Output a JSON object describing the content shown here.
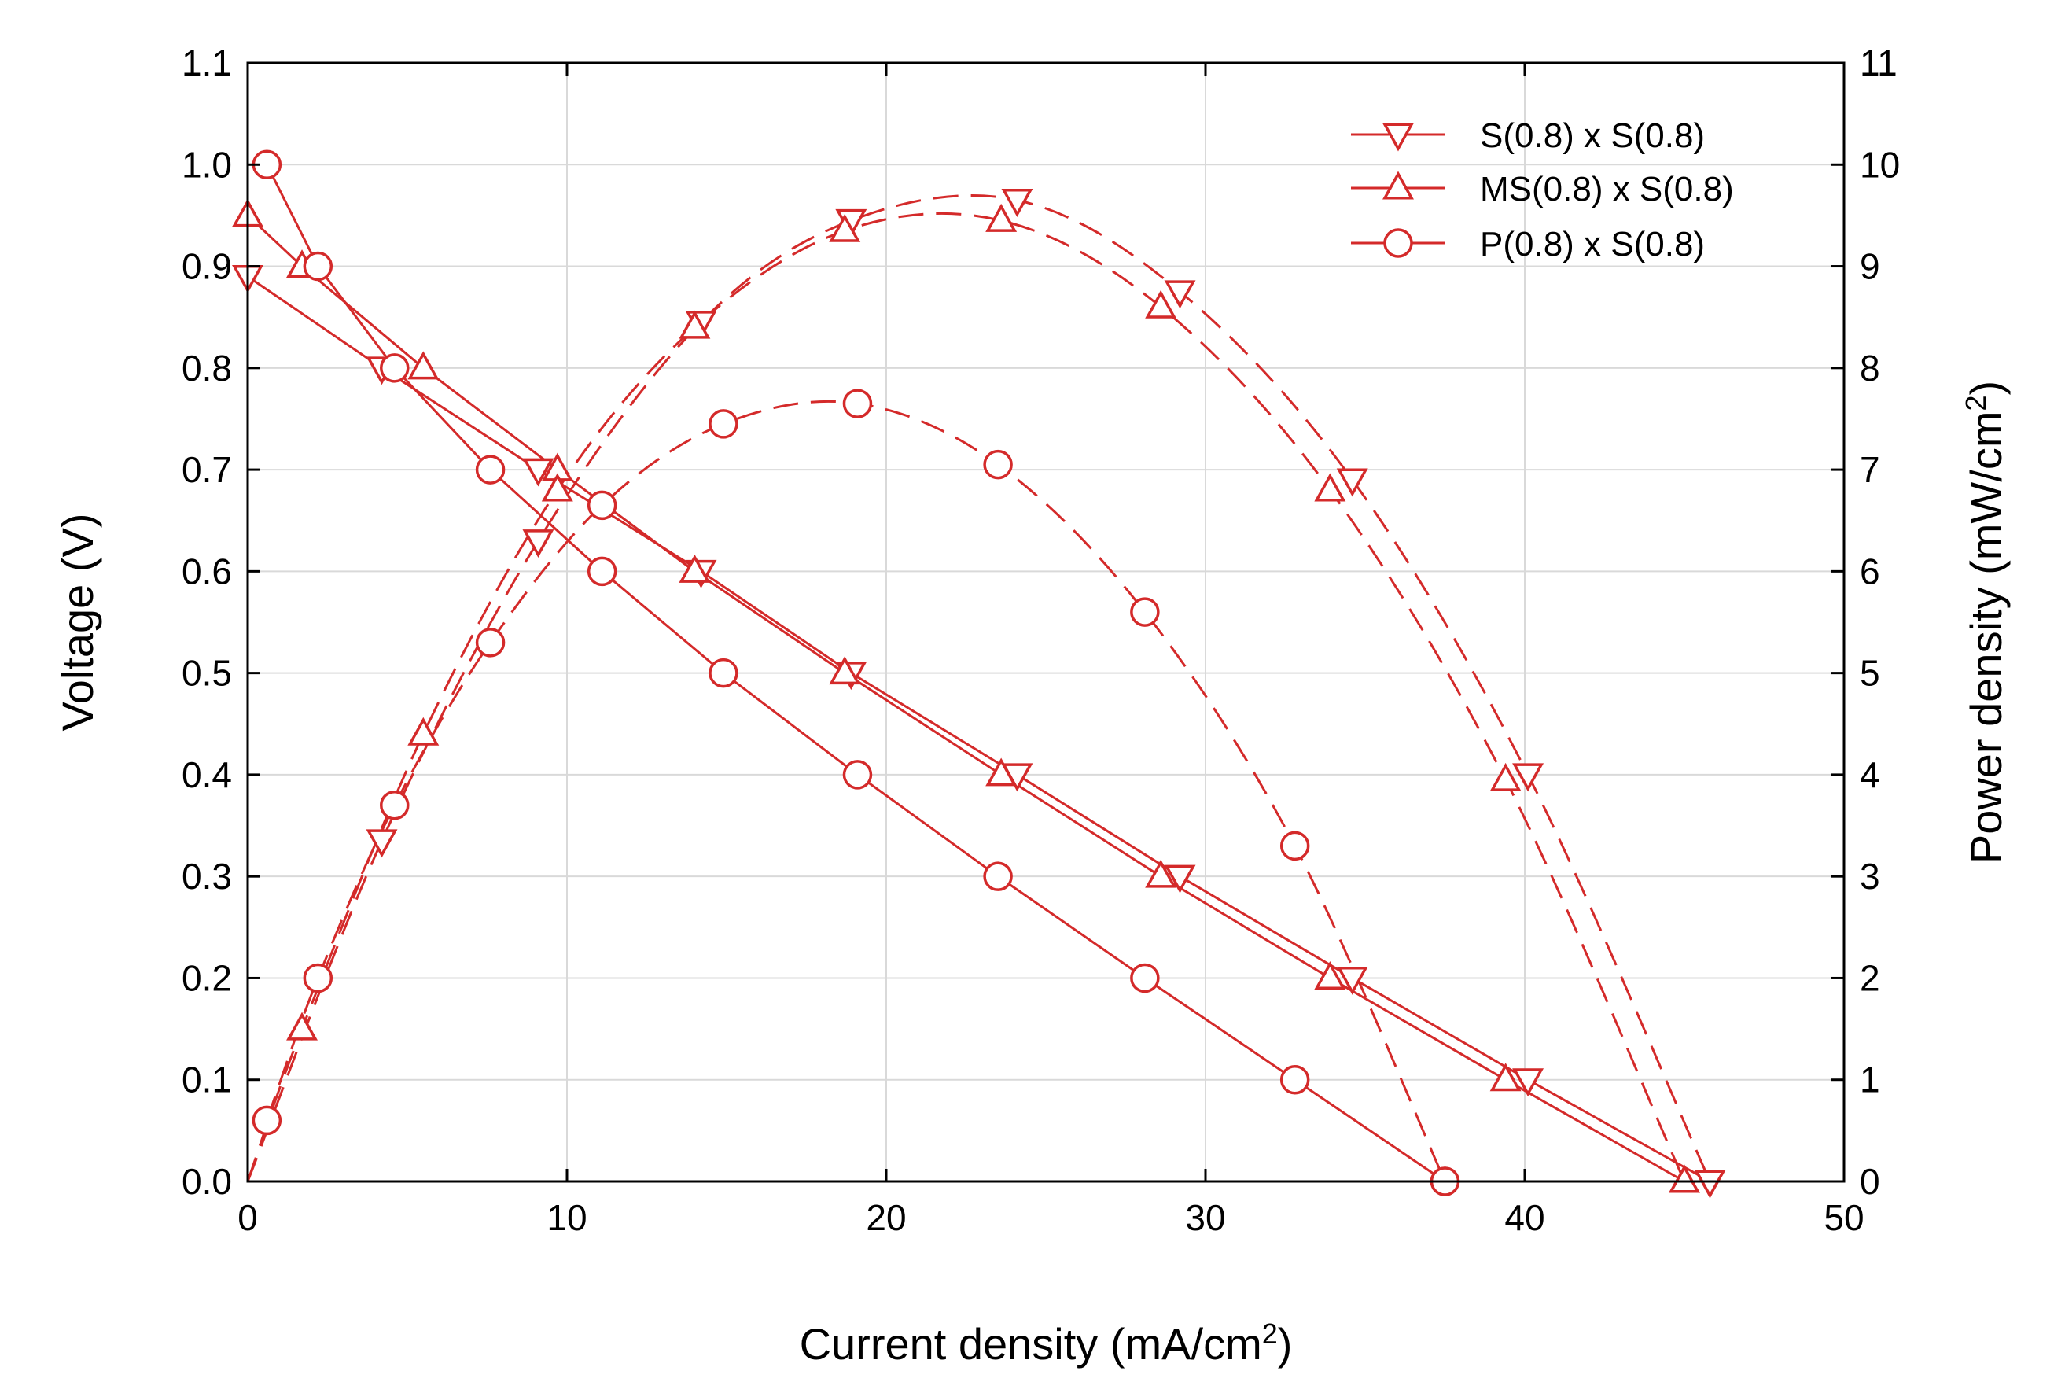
{
  "chart_data": {
    "type": "line",
    "title": "",
    "xlabel": "Current density (mA/cm",
    "xlabel_sup": "2",
    "xlabel_end": ")",
    "ylabel": "Voltage (V)",
    "y2label": "Power density (mW/cm",
    "y2label_sup": "2",
    "y2label_end": ")",
    "xlim": [
      0,
      50
    ],
    "ylim": [
      0,
      1.1
    ],
    "y2lim": [
      0,
      11
    ],
    "xticks": [
      "0",
      "10",
      "20",
      "30",
      "40",
      "50"
    ],
    "yticks": [
      "0.0",
      "0.1",
      "0.2",
      "0.3",
      "0.4",
      "0.5",
      "0.6",
      "0.7",
      "0.8",
      "0.9",
      "1.0",
      "1.1"
    ],
    "y2ticks": [
      "0",
      "1",
      "2",
      "3",
      "4",
      "5",
      "6",
      "7",
      "8",
      "9",
      "10",
      "11"
    ],
    "grid": true,
    "legend_position": "top-right",
    "color": "#d42a2a",
    "series": [
      {
        "name": "S(0.8) x S(0.8)",
        "marker": "triangle-down",
        "voltage": {
          "x": [
            0,
            4.2,
            9.1,
            14.2,
            18.9,
            24.1,
            29.2,
            34.6,
            40.1,
            45.8
          ],
          "y": [
            0.89,
            0.8,
            0.7,
            0.6,
            0.5,
            0.4,
            0.3,
            0.2,
            0.1,
            0.0
          ]
        },
        "power": {
          "x": [
            0,
            4.2,
            9.1,
            14.2,
            18.9,
            24.1,
            29.2,
            34.6,
            40.1,
            45.8
          ],
          "y": [
            0,
            3.35,
            6.3,
            8.45,
            9.45,
            9.65,
            8.75,
            6.9,
            4.0,
            0
          ]
        }
      },
      {
        "name": "MS(0.8) x S(0.8)",
        "marker": "triangle-up",
        "voltage": {
          "x": [
            0,
            1.7,
            5.5,
            9.7,
            14.0,
            18.7,
            23.6,
            28.6,
            33.9,
            39.4,
            45.0
          ],
          "y": [
            0.95,
            0.9,
            0.8,
            0.7,
            0.6,
            0.5,
            0.4,
            0.3,
            0.2,
            0.1,
            0.0
          ]
        },
        "power": {
          "x": [
            0,
            1.7,
            5.5,
            9.7,
            14.0,
            18.7,
            23.6,
            28.6,
            33.9,
            39.4,
            45.0
          ],
          "y": [
            0,
            1.5,
            4.4,
            6.8,
            8.4,
            9.35,
            9.45,
            8.6,
            6.8,
            3.95,
            0
          ]
        }
      },
      {
        "name": "P(0.8) x S(0.8)",
        "marker": "circle",
        "voltage": {
          "x": [
            0.6,
            2.2,
            4.6,
            7.6,
            11.1,
            14.9,
            19.1,
            23.5,
            28.1,
            32.8,
            37.5
          ],
          "y": [
            1.0,
            0.9,
            0.8,
            0.7,
            0.6,
            0.5,
            0.4,
            0.3,
            0.2,
            0.1,
            0.0
          ]
        },
        "power": {
          "x": [
            0.6,
            2.2,
            4.6,
            7.6,
            11.1,
            14.9,
            19.1,
            23.5,
            28.1,
            32.8,
            37.5
          ],
          "y": [
            0.6,
            2.0,
            3.7,
            5.3,
            6.65,
            7.45,
            7.65,
            7.05,
            5.6,
            3.3,
            0
          ]
        }
      }
    ]
  }
}
